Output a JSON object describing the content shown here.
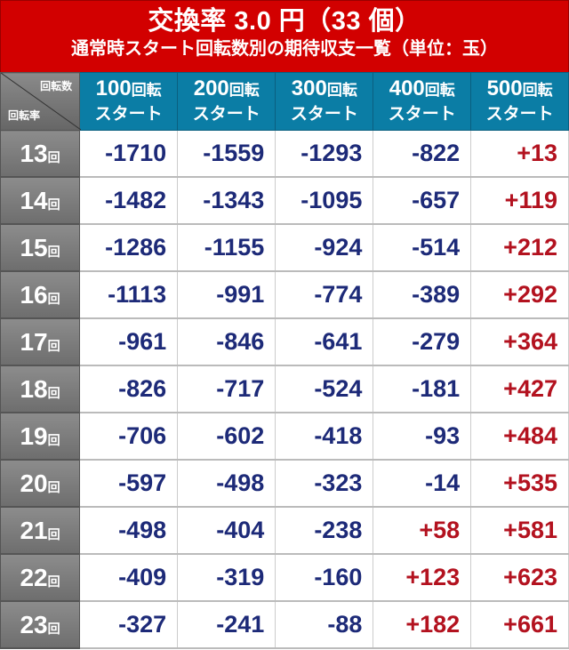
{
  "header": {
    "title": "交換率 3.0 円（33 個）",
    "subtitle": "通常時スタート回転数別の期待収支一覧（単位：玉）"
  },
  "corner": {
    "top_label": "回転数",
    "bottom_label": "回転率"
  },
  "columns": [
    {
      "num": "100",
      "unit": "回転",
      "sub": "スタート"
    },
    {
      "num": "200",
      "unit": "回転",
      "sub": "スタート"
    },
    {
      "num": "300",
      "unit": "回転",
      "sub": "スタート"
    },
    {
      "num": "400",
      "unit": "回転",
      "sub": "スタート"
    },
    {
      "num": "500",
      "unit": "回転",
      "sub": "スタート"
    }
  ],
  "rows": [
    {
      "rate": "13",
      "unit": "回",
      "values": [
        "-1710",
        "-1559",
        "-1293",
        "-822",
        "+13"
      ]
    },
    {
      "rate": "14",
      "unit": "回",
      "values": [
        "-1482",
        "-1343",
        "-1095",
        "-657",
        "+119"
      ]
    },
    {
      "rate": "15",
      "unit": "回",
      "values": [
        "-1286",
        "-1155",
        "-924",
        "-514",
        "+212"
      ]
    },
    {
      "rate": "16",
      "unit": "回",
      "values": [
        "-1113",
        "-991",
        "-774",
        "-389",
        "+292"
      ]
    },
    {
      "rate": "17",
      "unit": "回",
      "values": [
        "-961",
        "-846",
        "-641",
        "-279",
        "+364"
      ]
    },
    {
      "rate": "18",
      "unit": "回",
      "values": [
        "-826",
        "-717",
        "-524",
        "-181",
        "+427"
      ]
    },
    {
      "rate": "19",
      "unit": "回",
      "values": [
        "-706",
        "-602",
        "-418",
        "-93",
        "+484"
      ]
    },
    {
      "rate": "20",
      "unit": "回",
      "values": [
        "-597",
        "-498",
        "-323",
        "-14",
        "+535"
      ]
    },
    {
      "rate": "21",
      "unit": "回",
      "values": [
        "-498",
        "-404",
        "-238",
        "+58",
        "+581"
      ]
    },
    {
      "rate": "22",
      "unit": "回",
      "values": [
        "-409",
        "-319",
        "-160",
        "+123",
        "+623"
      ]
    },
    {
      "rate": "23",
      "unit": "回",
      "values": [
        "-327",
        "-241",
        "-88",
        "+182",
        "+661"
      ]
    }
  ],
  "colors": {
    "header": "#d20000",
    "column_header": "#0b7da5",
    "negative": "#1d2a78",
    "positive": "#b3121f",
    "row_header": "#777777"
  }
}
